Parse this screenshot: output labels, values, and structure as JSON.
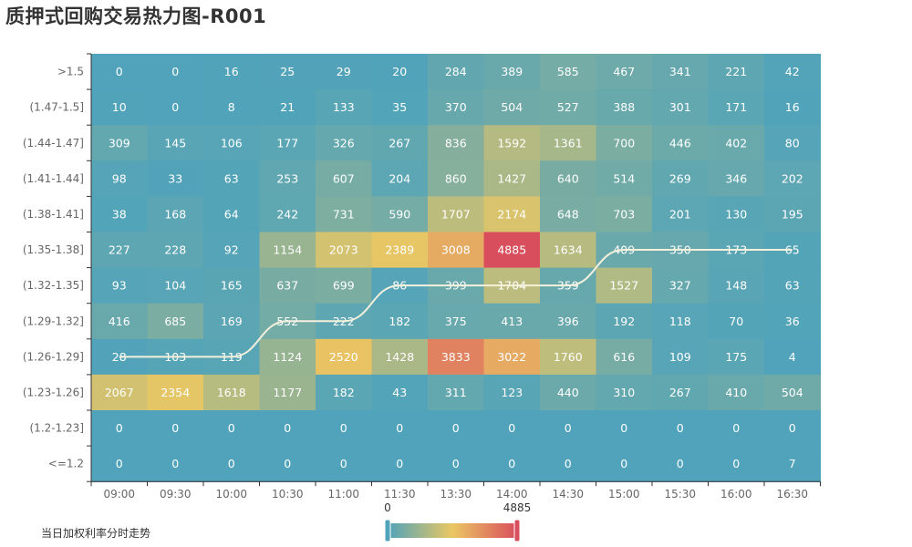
{
  "title": "质押式回购交易热力图-R001",
  "legend_label": "当日加权利率分时走势",
  "chart_data": {
    "type": "heatmap",
    "title": "质押式回购交易热力图-R001",
    "x_categories": [
      "09:00",
      "09:30",
      "10:00",
      "10:30",
      "11:00",
      "11:30",
      "13:30",
      "14:00",
      "14:30",
      "15:00",
      "15:30",
      "16:00",
      "16:30"
    ],
    "y_categories": [
      ">1.5",
      "(1.47-1.5]",
      "(1.44-1.47]",
      "(1.41-1.44]",
      "(1.38-1.41]",
      "(1.35-1.38]",
      "(1.32-1.35]",
      "(1.29-1.32]",
      "(1.26-1.29]",
      "(1.23-1.26]",
      "(1.2-1.23]",
      "<=1.2"
    ],
    "values": [
      [
        0,
        0,
        16,
        25,
        29,
        20,
        284,
        389,
        585,
        467,
        341,
        221,
        42
      ],
      [
        10,
        0,
        8,
        21,
        133,
        35,
        370,
        504,
        527,
        388,
        301,
        171,
        16
      ],
      [
        309,
        145,
        106,
        177,
        326,
        267,
        836,
        1592,
        1361,
        700,
        446,
        402,
        80
      ],
      [
        98,
        33,
        63,
        253,
        607,
        204,
        860,
        1427,
        640,
        514,
        269,
        346,
        202
      ],
      [
        38,
        168,
        64,
        242,
        731,
        590,
        1707,
        2174,
        648,
        703,
        201,
        130,
        195
      ],
      [
        227,
        228,
        92,
        1154,
        2073,
        2389,
        3008,
        4885,
        1634,
        409,
        350,
        173,
        65
      ],
      [
        93,
        104,
        165,
        637,
        699,
        86,
        399,
        1704,
        359,
        1527,
        327,
        148,
        63
      ],
      [
        416,
        685,
        169,
        552,
        222,
        182,
        375,
        413,
        396,
        192,
        118,
        70,
        36
      ],
      [
        28,
        103,
        119,
        1124,
        2520,
        1428,
        3833,
        3022,
        1760,
        616,
        109,
        175,
        4
      ],
      [
        2067,
        2354,
        1618,
        1177,
        182,
        43,
        311,
        123,
        440,
        310,
        267,
        410,
        504
      ],
      [
        0,
        0,
        0,
        0,
        0,
        0,
        0,
        0,
        0,
        0,
        0,
        0,
        0
      ],
      [
        0,
        0,
        0,
        0,
        0,
        0,
        0,
        0,
        0,
        0,
        0,
        0,
        7
      ]
    ],
    "visual_map": {
      "min": 0,
      "max": 4885,
      "min_label": "0",
      "max_label": "4885",
      "colors": [
        "#50a3ba",
        "#eac763",
        "#d94e5d"
      ]
    },
    "trend_line": {
      "name": "当日加权利率分时走势",
      "color": "#f5f0dc",
      "y_categories": [
        "(1.26-1.29]",
        "(1.26-1.29]",
        "(1.26-1.29]",
        "(1.29-1.32]",
        "(1.29-1.32]",
        "(1.32-1.35]",
        "(1.32-1.35]",
        "(1.32-1.35]",
        "(1.32-1.35]",
        "(1.35-1.38]",
        "(1.35-1.38]",
        "(1.35-1.38]",
        "(1.35-1.38]"
      ]
    }
  }
}
